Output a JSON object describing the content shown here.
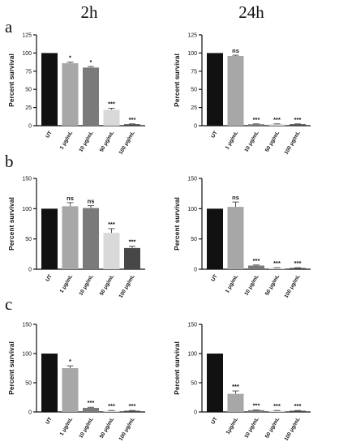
{
  "figure": {
    "column_headers": [
      "2h",
      "24h"
    ],
    "panel_letters": [
      "a",
      "b",
      "c"
    ]
  },
  "colors": {
    "UT": "#111111",
    "1 µg/mL": "#a7a7a7",
    "10 µg/mL": "#7a7a7a",
    "50 µg/mL": "#d9d9d9",
    "100 µg/mL": "#474747"
  },
  "chart_data": [
    {
      "type": "bar",
      "panel": "a",
      "time": "2h",
      "categories": [
        "UT",
        "1 μg/mL",
        "10 μg/mL",
        "50 μg/mL",
        "100 μg/mL"
      ],
      "values": [
        100,
        86,
        80,
        22,
        2
      ],
      "errors": [
        0,
        1.5,
        1.5,
        2,
        0.5
      ],
      "significance": [
        "",
        "*",
        "*",
        "***",
        "***"
      ],
      "ylabel": "Percent survival",
      "ylim": [
        0,
        125
      ],
      "yticks": [
        0,
        25,
        50,
        75,
        100,
        125
      ]
    },
    {
      "type": "bar",
      "panel": "a",
      "time": "24h",
      "categories": [
        "UT",
        "1 μg/mL",
        "10 μg/mL",
        "50 μg/mL",
        "100 μg/mL"
      ],
      "values": [
        100,
        96,
        2,
        2,
        2
      ],
      "errors": [
        0,
        1,
        0.5,
        0.5,
        0.5
      ],
      "significance": [
        "",
        "ns",
        "***",
        "***",
        "***"
      ],
      "ylabel": "Percent survival",
      "ylim": [
        0,
        125
      ],
      "yticks": [
        0,
        25,
        50,
        75,
        100,
        125
      ]
    },
    {
      "type": "bar",
      "panel": "b",
      "time": "2h",
      "categories": [
        "UT",
        "1 μg/mL",
        "10 μg/mL",
        "50 μg/mL",
        "100 μg/mL"
      ],
      "values": [
        100,
        104,
        101,
        60,
        35
      ],
      "errors": [
        0,
        6,
        4,
        7,
        3
      ],
      "significance": [
        "",
        "ns",
        "ns",
        "***",
        "***"
      ],
      "ylabel": "Percent survival",
      "ylim": [
        0,
        150
      ],
      "yticks": [
        0,
        50,
        100,
        150
      ]
    },
    {
      "type": "bar",
      "panel": "b",
      "time": "24h",
      "categories": [
        "UT",
        "1 μg/mL",
        "10 μg/mL",
        "50 μg/mL",
        "100 μg/mL"
      ],
      "values": [
        100,
        103,
        6,
        2,
        2
      ],
      "errors": [
        0,
        8,
        1,
        0.5,
        0.5
      ],
      "significance": [
        "",
        "ns",
        "***",
        "***",
        "***"
      ],
      "ylabel": "Percent survival",
      "ylim": [
        0,
        150
      ],
      "yticks": [
        0,
        50,
        100,
        150
      ]
    },
    {
      "type": "bar",
      "panel": "c",
      "time": "2h",
      "categories": [
        "UT",
        "1 μg/mL",
        "10 μg/mL",
        "50 μg/mL",
        "100 μg/mL"
      ],
      "values": [
        100,
        75,
        7,
        2,
        2
      ],
      "errors": [
        0,
        4,
        1,
        0.5,
        0.5
      ],
      "significance": [
        "",
        "*",
        "***",
        "***",
        "***"
      ],
      "ylabel": "Percent survival",
      "ylim": [
        0,
        150
      ],
      "yticks": [
        0,
        50,
        100,
        150
      ]
    },
    {
      "type": "bar",
      "panel": "c",
      "time": "24h",
      "categories": [
        "UT",
        "1μg/mL",
        "10 μg/mL",
        "50 μg/mL",
        "100 μg/mL"
      ],
      "values": [
        100,
        31,
        3,
        2,
        2
      ],
      "errors": [
        0,
        5,
        0.5,
        0.5,
        0.5
      ],
      "significance": [
        "",
        "***",
        "***",
        "***",
        "***"
      ],
      "ylabel": "Percent survival",
      "ylim": [
        0,
        150
      ],
      "yticks": [
        0,
        50,
        100,
        150
      ]
    }
  ]
}
